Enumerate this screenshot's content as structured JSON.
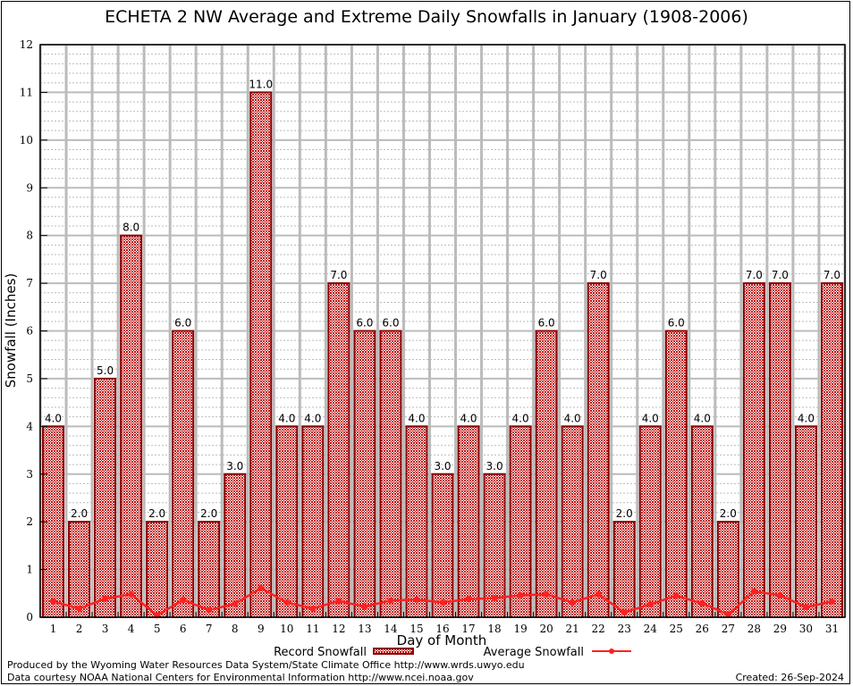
{
  "chart_data": {
    "type": "bar",
    "title": "ECHETA 2 NW Average and Extreme Daily Snowfalls in January (1908-2006)",
    "xlabel": "Day of Month",
    "ylabel": "Snowfall (Inches)",
    "ylim": [
      0,
      12
    ],
    "yticks": [
      0,
      1,
      2,
      3,
      4,
      5,
      6,
      7,
      8,
      9,
      10,
      11,
      12
    ],
    "grid": true,
    "legend_position": "bottom",
    "categories": [
      "1",
      "2",
      "3",
      "4",
      "5",
      "6",
      "7",
      "8",
      "9",
      "10",
      "11",
      "12",
      "13",
      "14",
      "15",
      "16",
      "17",
      "18",
      "19",
      "20",
      "21",
      "22",
      "23",
      "24",
      "25",
      "26",
      "27",
      "28",
      "29",
      "30",
      "31"
    ],
    "series": [
      {
        "name": "Record Snowfall",
        "type": "bar",
        "color": "#8b0000",
        "values": [
          4.0,
          2.0,
          5.0,
          8.0,
          2.0,
          6.0,
          2.0,
          3.0,
          11.0,
          4.0,
          4.0,
          7.0,
          6.0,
          6.0,
          4.0,
          3.0,
          4.0,
          3.0,
          4.0,
          6.0,
          4.0,
          7.0,
          2.0,
          4.0,
          6.0,
          4.0,
          2.0,
          7.0,
          7.0,
          4.0,
          7.0
        ],
        "labels": [
          "4.0",
          "2.0",
          "5.0",
          "8.0",
          "2.0",
          "6.0",
          "2.0",
          "3.0",
          "11.0",
          "4.0",
          "4.0",
          "7.0",
          "6.0",
          "6.0",
          "4.0",
          "3.0",
          "4.0",
          "3.0",
          "4.0",
          "6.0",
          "4.0",
          "7.0",
          "2.0",
          "4.0",
          "6.0",
          "4.0",
          "2.0",
          "7.0",
          "7.0",
          "4.0",
          "7.0"
        ]
      },
      {
        "name": "Average Snowfall",
        "type": "line",
        "color": "#ff2020",
        "values": [
          0.33,
          0.18,
          0.39,
          0.48,
          0.04,
          0.36,
          0.15,
          0.28,
          0.61,
          0.31,
          0.18,
          0.34,
          0.22,
          0.35,
          0.37,
          0.31,
          0.38,
          0.4,
          0.46,
          0.48,
          0.31,
          0.48,
          0.1,
          0.27,
          0.45,
          0.29,
          0.06,
          0.54,
          0.46,
          0.21,
          0.33
        ]
      }
    ]
  },
  "footer": {
    "line1": "Produced by the Wyoming Water Resources Data System/State Climate Office http://www.wrds.uwyo.edu",
    "line2": "Data courtesy NOAA National Centers for Environmental Information http://www.ncei.noaa.gov",
    "created": "Created: 26-Sep-2024"
  }
}
